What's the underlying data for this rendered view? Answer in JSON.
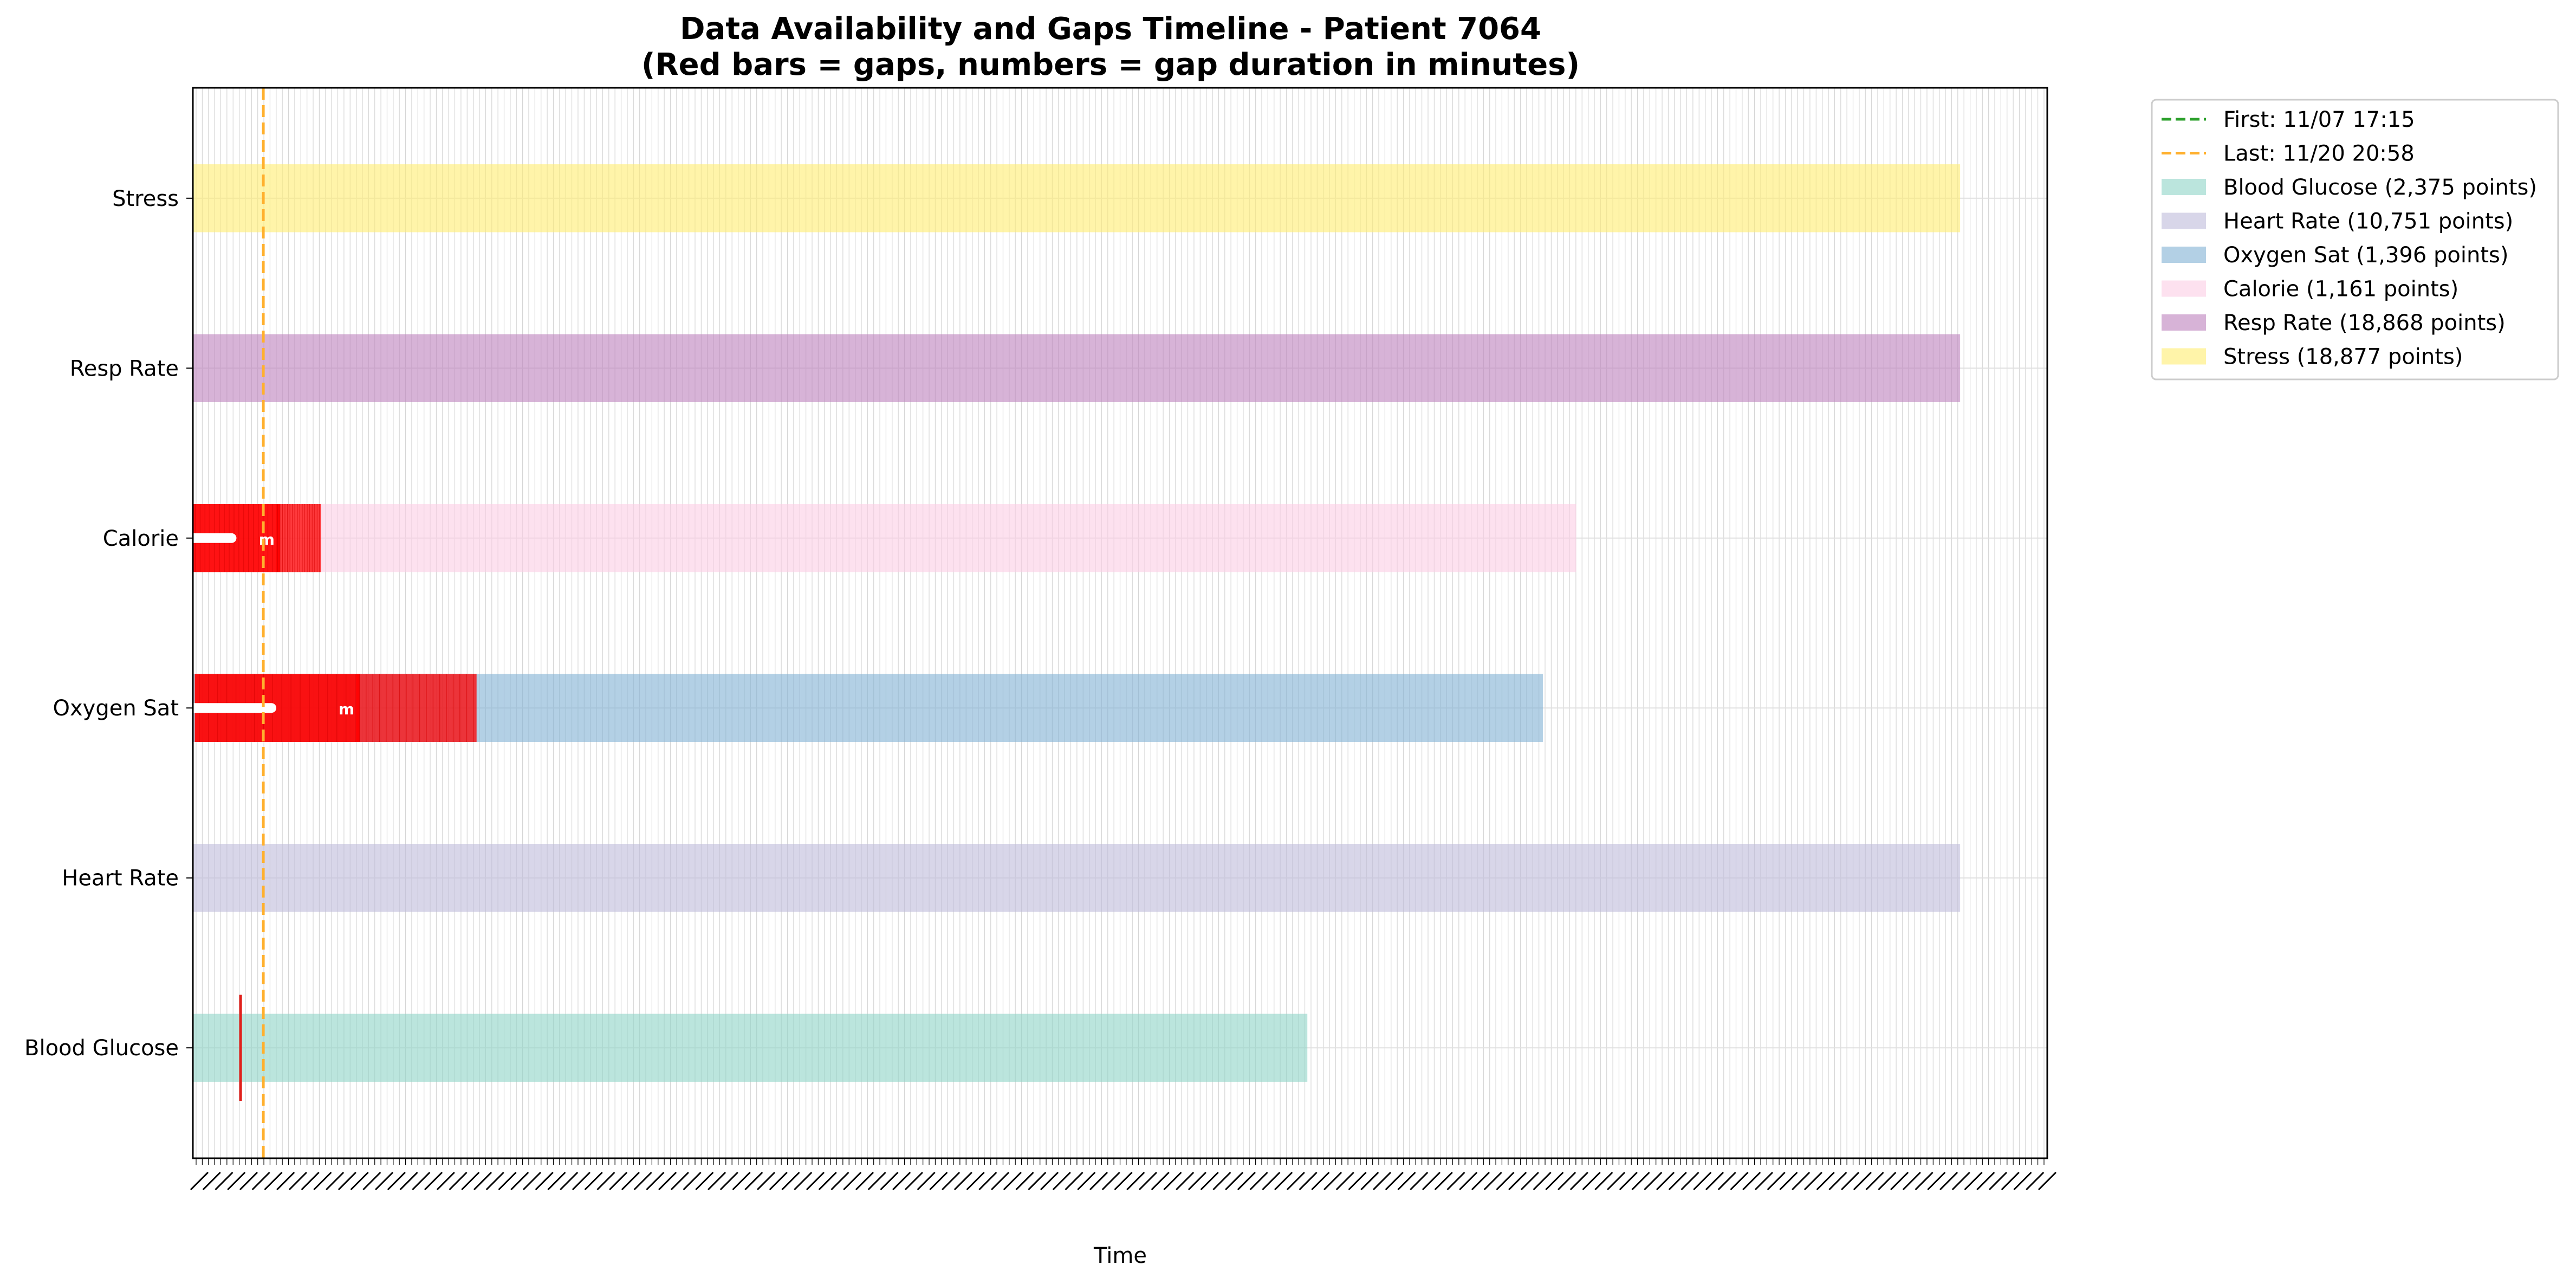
{
  "chart_data": {
    "type": "timeline",
    "title": "Data Availability and Gaps Timeline - Patient 7064",
    "subtitle": "(Red bars = gaps, numbers = gap duration in minutes)",
    "xlabel": "Time",
    "ylabel": "",
    "xlim": [
      0,
      1
    ],
    "grid": true,
    "legend_position": "outside-upper-right",
    "markers": [
      {
        "label": "First: 11/07 17:15",
        "color": "#2ca02c",
        "style": "dashed",
        "position": null
      },
      {
        "label": "Last: 11/20 20:58",
        "color": "#ffb02e",
        "style": "dashed",
        "position": 0.038
      }
    ],
    "series": [
      {
        "name": "Blood Glucose",
        "legend": "Blood Glucose (2,375 points)",
        "color": "#8dd3c7",
        "start": 0.0,
        "end": 0.601,
        "gaps": [
          {
            "start": 0.025,
            "end": 0.026,
            "label": ""
          }
        ]
      },
      {
        "name": "Heart Rate",
        "legend": "Heart Rate (10,751 points)",
        "color": "#bebada",
        "start": 0.0,
        "end": 0.953,
        "gaps": []
      },
      {
        "name": "Oxygen Sat",
        "legend": "Oxygen Sat (1,396 points)",
        "color": "#80b1d3",
        "start": 0.0,
        "end": 0.728,
        "gaps": [
          {
            "start": 0.001,
            "end": 0.09,
            "label": "m"
          },
          {
            "start": 0.088,
            "end": 0.153,
            "label": ""
          }
        ]
      },
      {
        "name": "Calorie",
        "legend": "Calorie (1,161 points)",
        "color": "#fccde5",
        "start": 0.0,
        "end": 0.746,
        "gaps": [
          {
            "start": 0.0,
            "end": 0.047,
            "label": "m"
          },
          {
            "start": 0.045,
            "end": 0.069,
            "label": ""
          }
        ]
      },
      {
        "name": "Resp Rate",
        "legend": "Resp Rate (18,868 points)",
        "color": "#bc80bd",
        "start": 0.0,
        "end": 0.953,
        "gaps": []
      },
      {
        "name": "Stress",
        "legend": "Stress (18,877 points)",
        "color": "#ffed6f",
        "start": 0.0,
        "end": 0.953,
        "gaps": []
      }
    ],
    "tick_count": 300
  }
}
